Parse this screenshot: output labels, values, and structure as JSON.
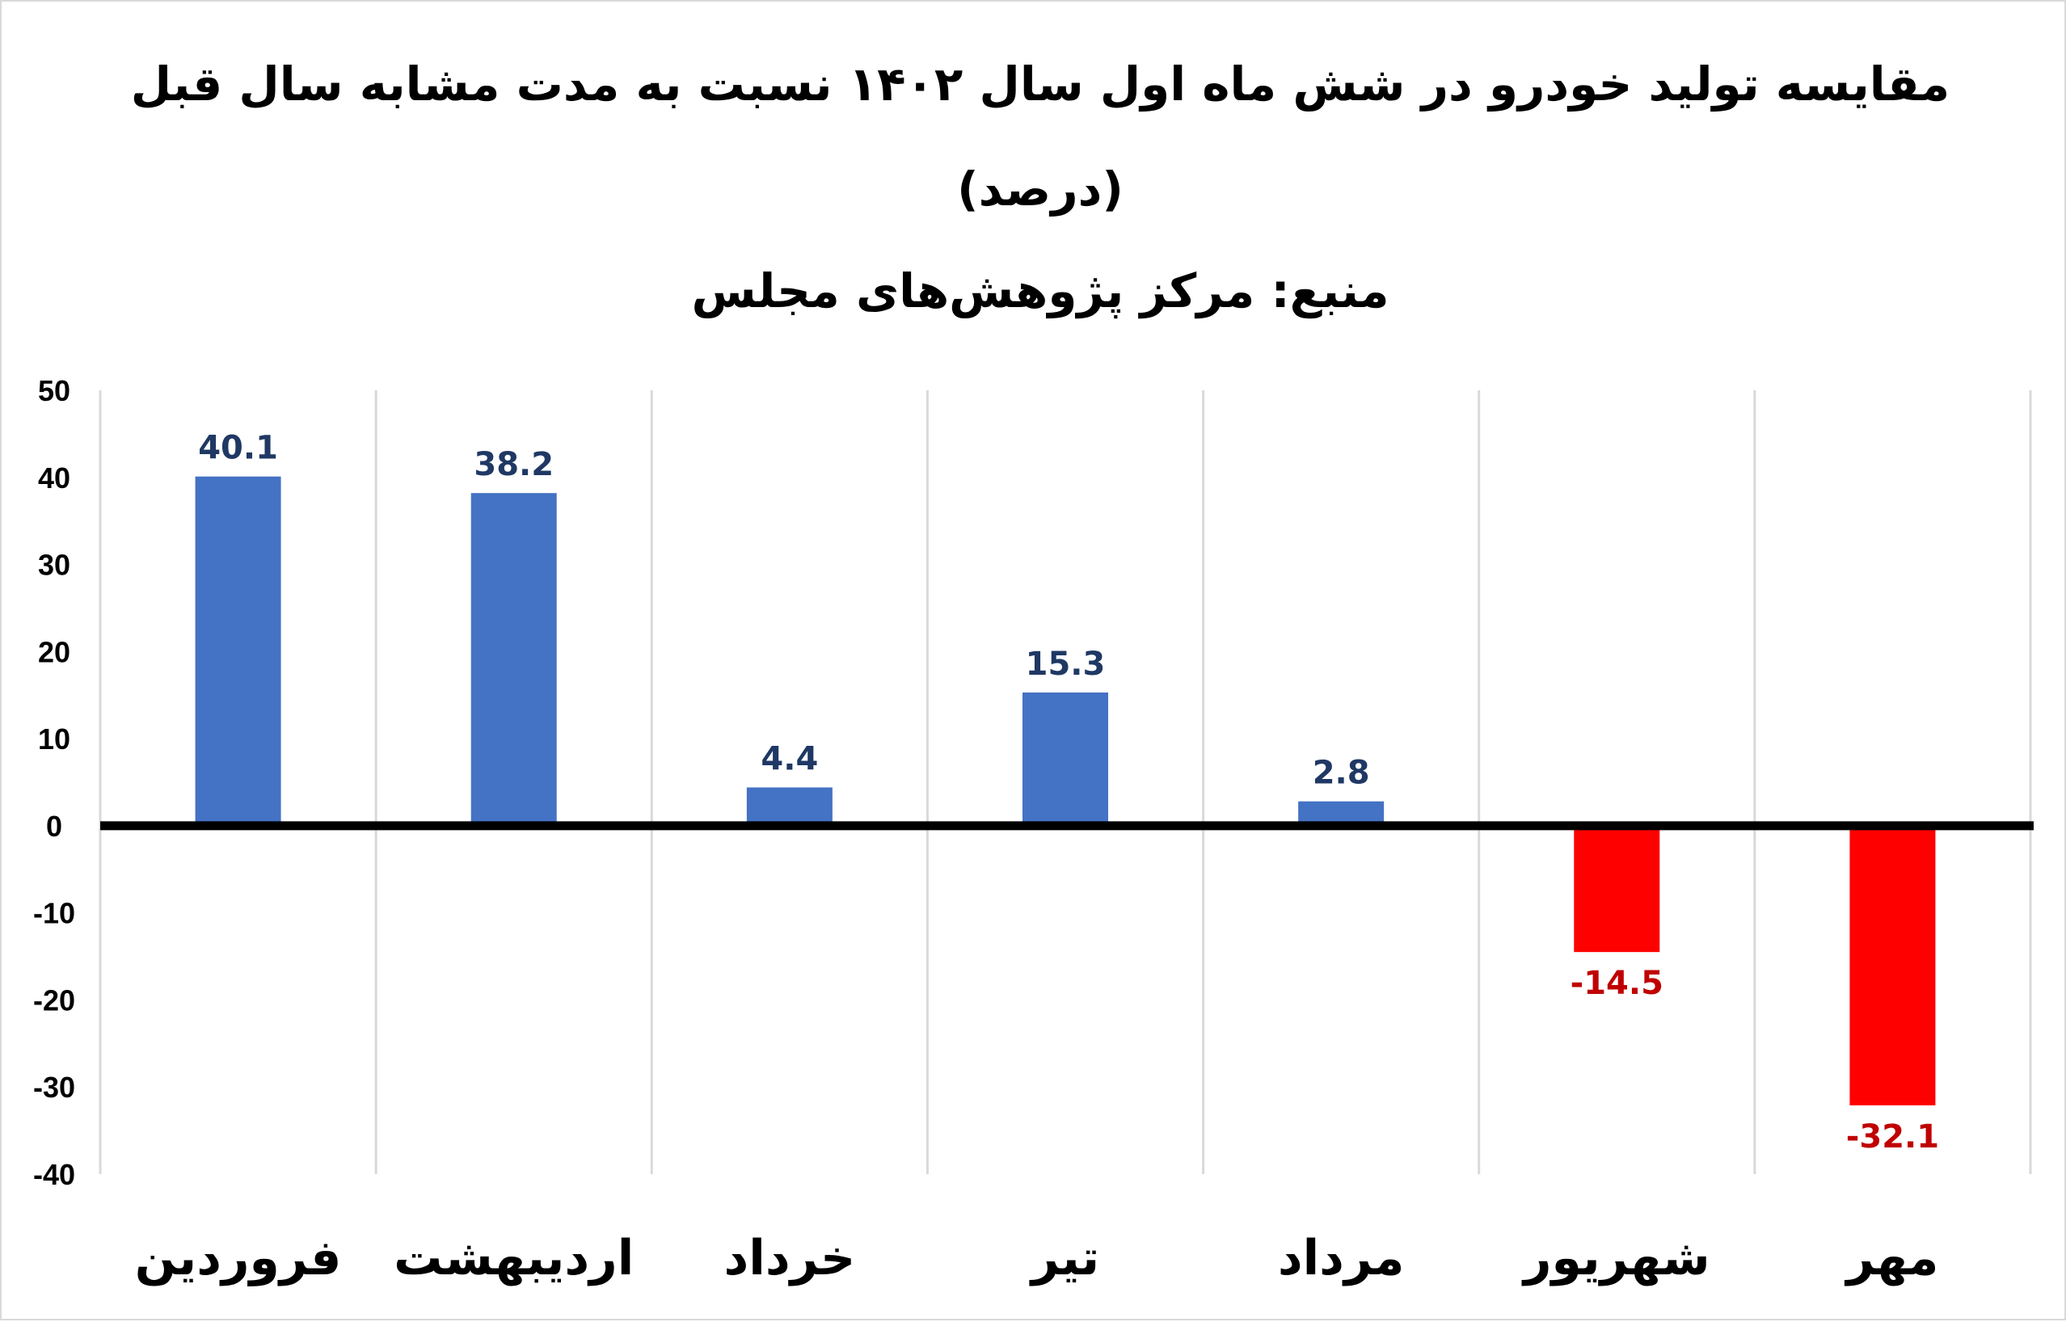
{
  "chart_data": {
    "type": "bar",
    "title": "مقایسه تولید خودرو در شش ماه اول سال ۱۴۰۲ نسبت به مدت مشابه سال قبل",
    "subtitle": "(درصد)",
    "source": "منبع: مرکز پژوهش‌های مجلس",
    "categories": [
      "فروردین",
      "اردیبهشت",
      "خرداد",
      "تیر",
      "مرداد",
      "شهریور",
      "مهر"
    ],
    "values": [
      40.1,
      38.2,
      4.4,
      15.3,
      2.8,
      -14.5,
      -32.1
    ],
    "ylim": [
      -40,
      50
    ],
    "yticks": [
      50,
      40,
      30,
      20,
      10,
      0,
      -10,
      -20,
      -30,
      -40
    ],
    "grid": "vertical",
    "legend": "none",
    "colors": {
      "positive_bar": "#4472C4",
      "negative_bar": "#FF0000",
      "positive_label": "#1F3864",
      "negative_label": "#C00000",
      "zero_line": "#000000",
      "grid": "#D9D9D9"
    }
  }
}
